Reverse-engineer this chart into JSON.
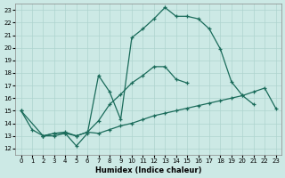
{
  "xlabel": "Humidex (Indice chaleur)",
  "xlim": [
    -0.5,
    23.5
  ],
  "ylim": [
    11.5,
    23.5
  ],
  "xticks": [
    0,
    1,
    2,
    3,
    4,
    5,
    6,
    7,
    8,
    9,
    10,
    11,
    12,
    13,
    14,
    15,
    16,
    17,
    18,
    19,
    20,
    21,
    22,
    23
  ],
  "yticks": [
    12,
    13,
    14,
    15,
    16,
    17,
    18,
    19,
    20,
    21,
    22,
    23
  ],
  "bg_color": "#cce9e5",
  "grid_color": "#aed4cf",
  "line_color": "#1a6b5a",
  "line1_x": [
    0,
    1,
    2,
    3,
    4,
    5,
    6,
    7,
    8,
    9,
    10,
    11,
    12,
    13,
    14,
    15,
    16,
    17,
    18,
    19,
    20,
    21
  ],
  "line1_y": [
    15,
    13.5,
    13,
    13,
    13.2,
    12.2,
    13.2,
    17.8,
    16.5,
    14.3,
    20.8,
    21.5,
    22.3,
    23.2,
    22.5,
    22.5,
    22.3,
    21.5,
    19.9,
    17.3,
    16.2,
    15.5
  ],
  "line2_x": [
    2,
    3,
    4,
    5,
    6,
    7,
    8,
    9,
    10,
    11,
    12,
    13,
    14,
    15,
    16,
    17,
    18,
    19,
    20
  ],
  "line2_y": [
    13,
    13.2,
    13.2,
    13,
    13.3,
    14.2,
    15.5,
    16.3,
    17.2,
    17.8,
    18.5,
    18.5,
    17.5,
    17.2,
    null,
    null,
    null,
    null,
    null
  ],
  "line3_x": [
    0,
    2,
    3,
    4,
    5,
    6,
    7,
    8,
    9,
    10,
    11,
    12,
    13,
    14,
    15,
    16,
    17,
    18,
    19,
    20,
    21,
    22,
    23
  ],
  "line3_y": [
    15,
    13,
    13.2,
    13.3,
    13,
    13.3,
    13.2,
    13.5,
    13.8,
    14.0,
    14.3,
    14.6,
    14.8,
    15.0,
    15.2,
    15.4,
    15.6,
    15.8,
    16.0,
    16.2,
    16.5,
    16.8,
    15.2
  ]
}
